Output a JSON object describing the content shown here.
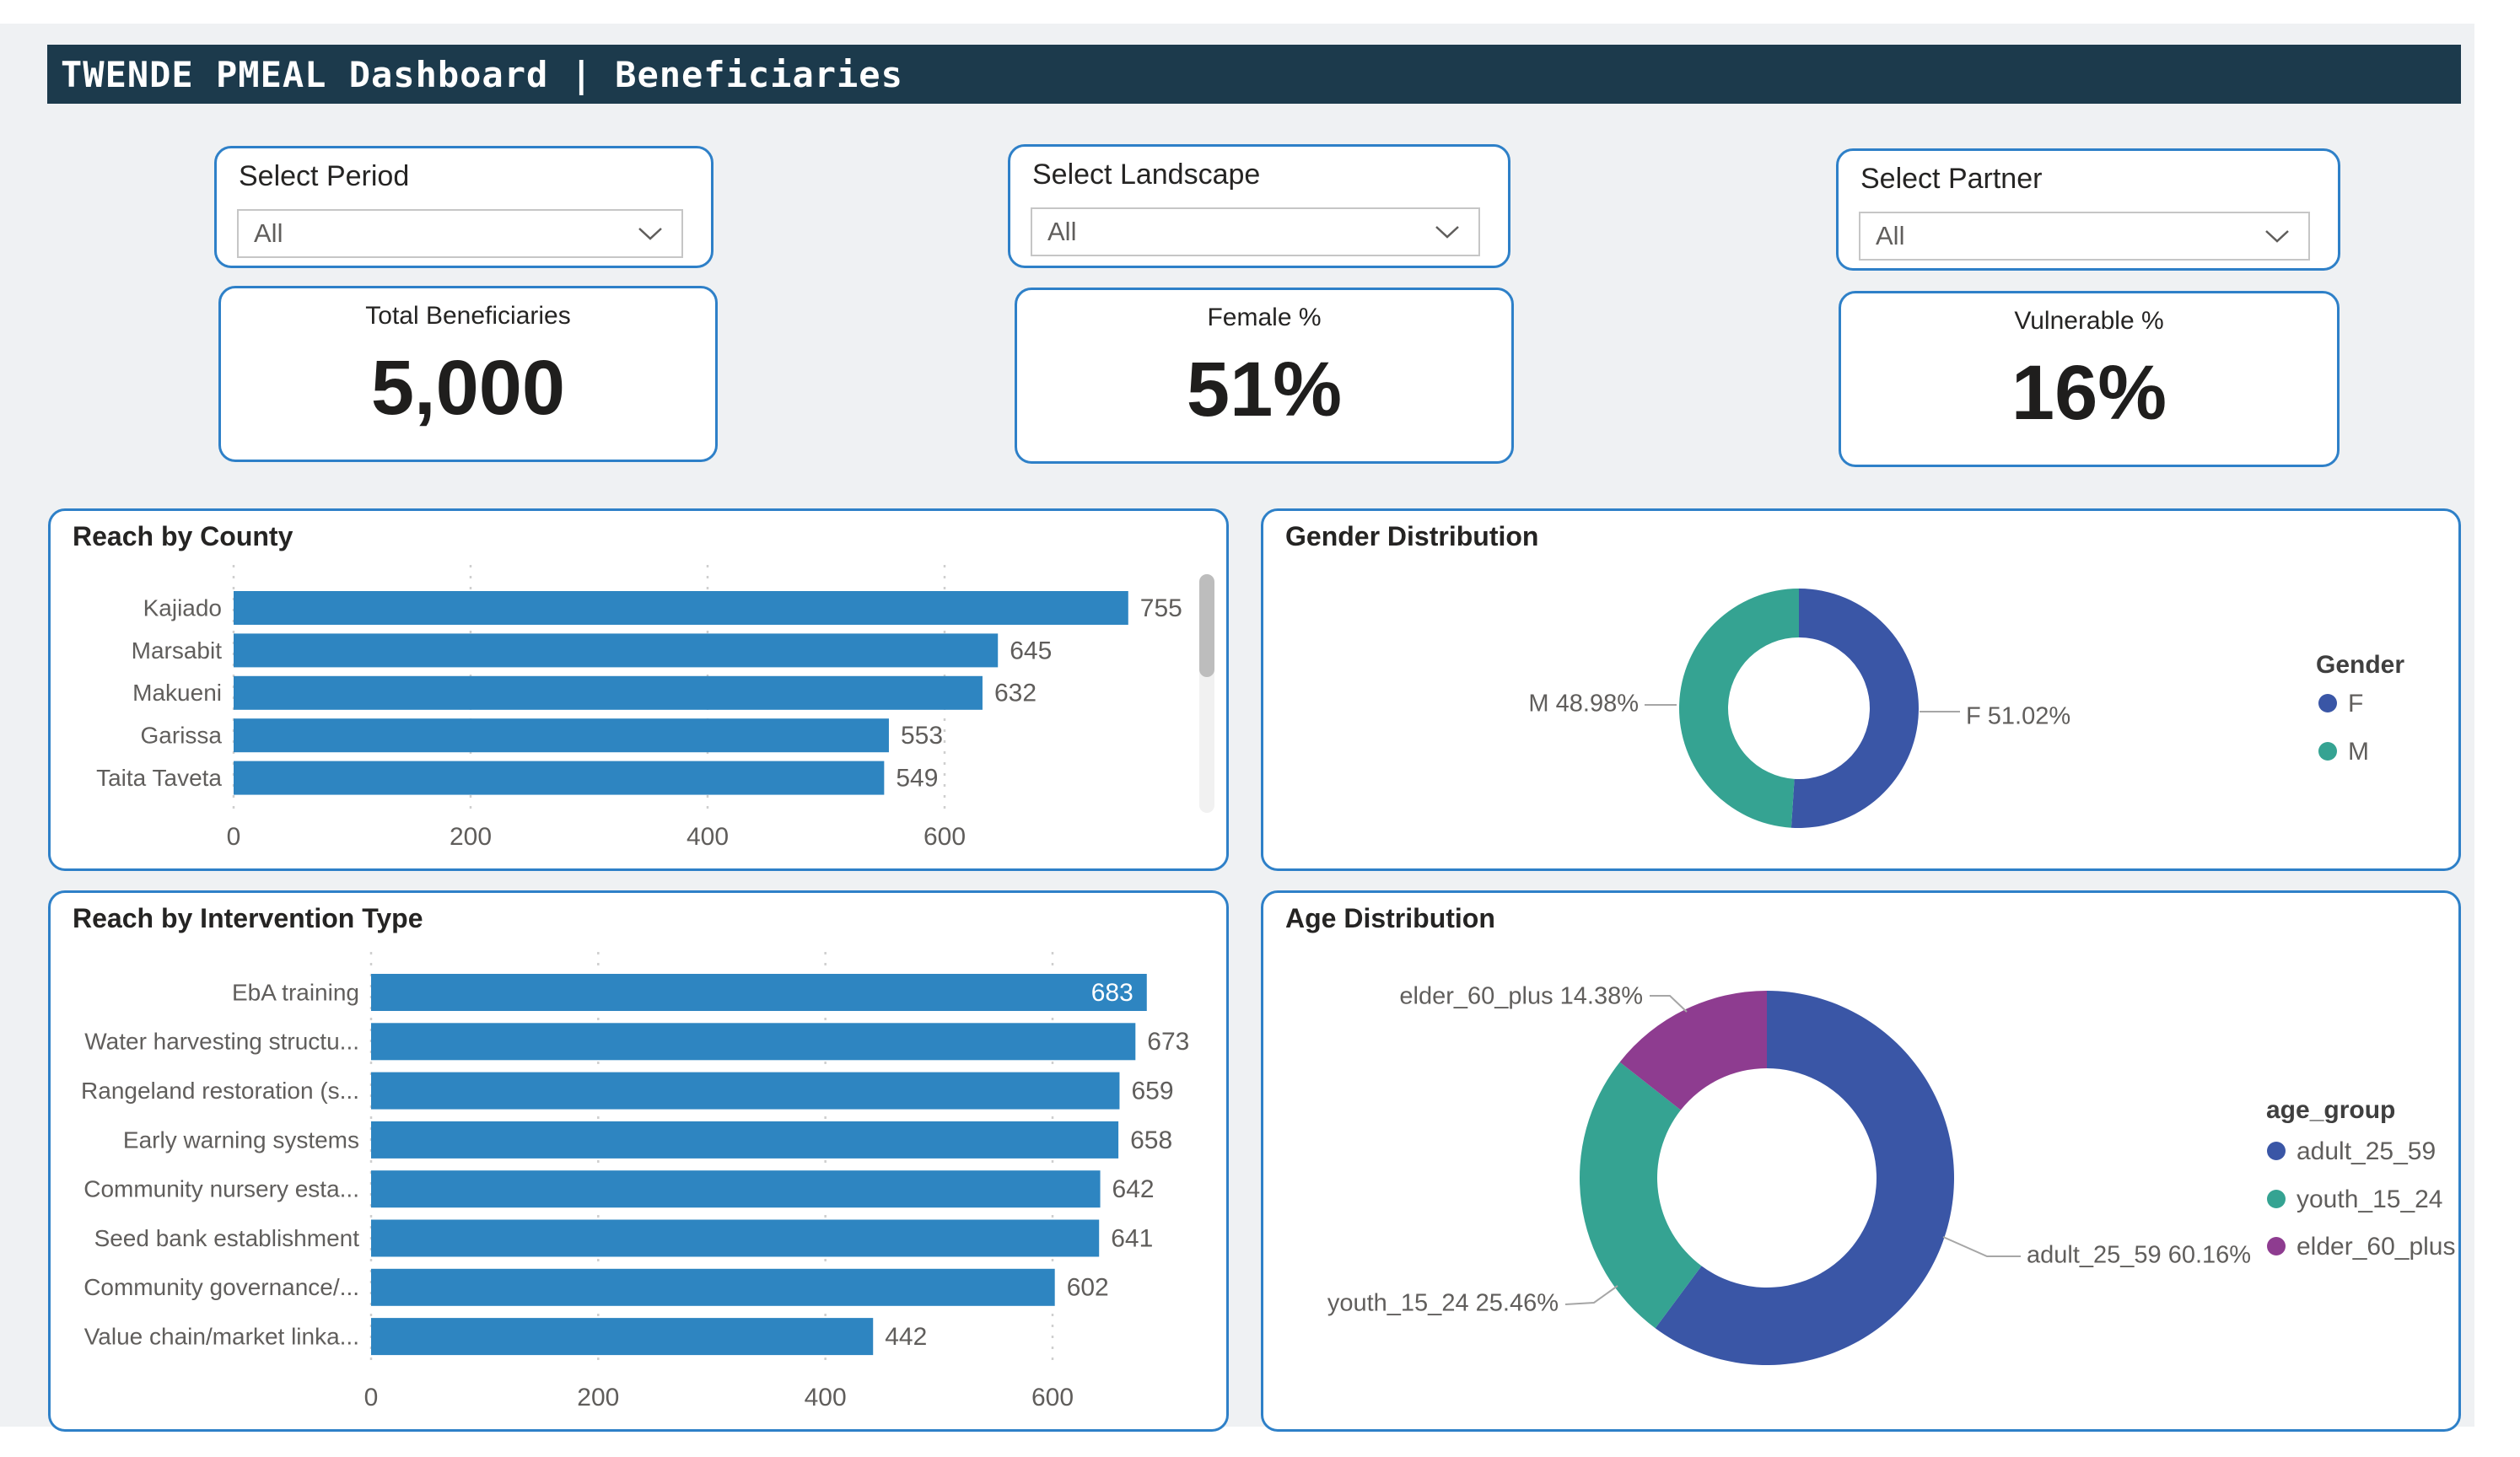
{
  "header": {
    "title": "TWENDE PMEAL Dashboard | Beneficiaries"
  },
  "slicers": [
    {
      "label": "Select Period",
      "value": "All"
    },
    {
      "label": "Select Landscape",
      "value": "All"
    },
    {
      "label": "Select Partner",
      "value": "All"
    }
  ],
  "kpis": [
    {
      "label": "Total Beneficiaries",
      "value": "5,000"
    },
    {
      "label": "Female %",
      "value": "51%"
    },
    {
      "label": "Vulnerable %",
      "value": "16%"
    }
  ],
  "colors": {
    "header_bg": "#1c3a4c",
    "canvas_bg": "#eff1f3",
    "card_border": "#2e80c8",
    "bar_blue": "#2e85c1",
    "donut_blue": "#3a56a6",
    "donut_teal": "#35a392",
    "donut_purple": "#8e3c90"
  },
  "chart_data": [
    {
      "id": "county",
      "type": "bar",
      "title": "Reach by County",
      "categories": [
        "Kajiado",
        "Marsabit",
        "Makueni",
        "Garissa",
        "Taita Taveta"
      ],
      "values": [
        755,
        645,
        632,
        553,
        549
      ],
      "xticks": [
        0,
        200,
        400,
        600
      ],
      "xlim": [
        0,
        840
      ],
      "bar_color": "#2e85c1",
      "grid": true,
      "scrollbar": true
    },
    {
      "id": "gender",
      "type": "donut",
      "title": "Gender Distribution",
      "legend_title": "Gender",
      "legend_position": "right",
      "slices": [
        {
          "label": "F",
          "pct": 51.02,
          "color": "#3a56a6",
          "callout": "F 51.02%"
        },
        {
          "label": "M",
          "pct": 48.98,
          "color": "#35a392",
          "callout": "M 48.98%"
        }
      ]
    },
    {
      "id": "intervention",
      "type": "bar",
      "title": "Reach by Intervention Type",
      "categories": [
        "EbA training",
        "Water harvesting structu...",
        "Rangeland restoration (s...",
        "Early warning systems",
        "Community nursery esta...",
        "Seed bank establishment",
        "Community governance/...",
        "Value chain/market linka..."
      ],
      "values": [
        683,
        673,
        659,
        658,
        642,
        641,
        602,
        442
      ],
      "xticks": [
        0,
        200,
        400,
        600
      ],
      "xlim": [
        0,
        760
      ],
      "bar_color": "#2e85c1",
      "grid": true,
      "first_label_inside": true
    },
    {
      "id": "age",
      "type": "donut",
      "title": "Age Distribution",
      "legend_title": "age_group",
      "legend_position": "right",
      "slices": [
        {
          "label": "adult_25_59",
          "pct": 60.16,
          "color": "#3a56a6",
          "callout": "adult_25_59 60.16%"
        },
        {
          "label": "youth_15_24",
          "pct": 25.46,
          "color": "#35a392",
          "callout": "youth_15_24 25.46%"
        },
        {
          "label": "elder_60_plus",
          "pct": 14.38,
          "color": "#8e3c90",
          "callout": "elder_60_plus 14.38%"
        }
      ]
    }
  ]
}
